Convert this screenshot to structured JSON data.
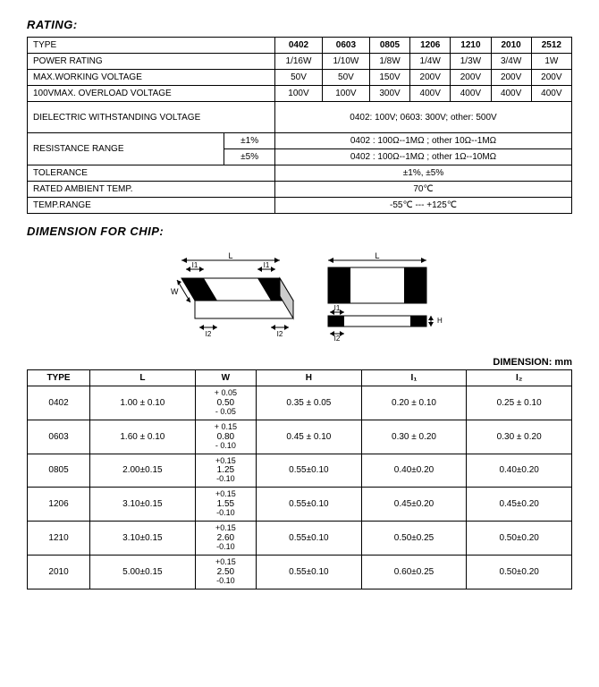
{
  "rating": {
    "title": "RATING:",
    "headers": [
      "TYPE",
      "0402",
      "0603",
      "0805",
      "1206",
      "1210",
      "2010",
      "2512"
    ],
    "rows": {
      "power": {
        "label": "POWER RATING",
        "vals": [
          "1/16W",
          "1/10W",
          "1/8W",
          "1/4W",
          "1/3W",
          "3/4W",
          "1W"
        ]
      },
      "maxwork": {
        "label": "MAX.WORKING VOLTAGE",
        "vals": [
          "50V",
          "50V",
          "150V",
          "200V",
          "200V",
          "200V",
          "200V"
        ]
      },
      "overload": {
        "label": "100VMAX. OVERLOAD VOLTAGE",
        "vals": [
          "100V",
          "100V",
          "300V",
          "400V",
          "400V",
          "400V",
          "400V"
        ]
      },
      "dielectric": {
        "label": "DIELECTRIC WITHSTANDING VOLTAGE",
        "val": "0402: 100V; 0603: 300V; other: 500V"
      },
      "resrange": {
        "label": "RESISTANCE RANGE",
        "tol1": "±1%",
        "val1": "0402 : 100Ω--1MΩ ; other 10Ω--1MΩ",
        "tol2": "±5%",
        "val2": "0402 : 100Ω--1MΩ ; other 1Ω--10MΩ"
      },
      "tolerance": {
        "label": "TOLERANCE",
        "val": "±1%, ±5%"
      },
      "ratedtemp": {
        "label": "RATED AMBIENT TEMP.",
        "val": "70℃"
      },
      "temprange": {
        "label": "TEMP.RANGE",
        "val": "-55℃ --- +125℃"
      }
    }
  },
  "dimension": {
    "title": "DIMENSION FOR CHIP:",
    "unit": "DIMENSION: mm",
    "headers": [
      "TYPE",
      "L",
      "W",
      "H",
      "I₁",
      "I₂"
    ],
    "rows": [
      {
        "t": "0402",
        "l": "1.00 ± 0.10",
        "w": "0.50",
        "wp": "+ 0.05",
        "wm": "- 0.05",
        "h": "0.35 ± 0.05",
        "i1": "0.20 ± 0.10",
        "i2": "0.25 ± 0.10"
      },
      {
        "t": "0603",
        "l": "1.60 ± 0.10",
        "w": "0.80",
        "wp": "+ 0.15",
        "wm": "- 0.10",
        "h": "0.45 ± 0.10",
        "i1": "0.30 ± 0.20",
        "i2": "0.30 ± 0.20"
      },
      {
        "t": "0805",
        "l": "2.00±0.15",
        "w": "1.25",
        "wp": "+0.15",
        "wm": "-0.10",
        "h": "0.55±0.10",
        "i1": "0.40±0.20",
        "i2": "0.40±0.20"
      },
      {
        "t": "1206",
        "l": "3.10±0.15",
        "w": "1.55",
        "wp": "+0.15",
        "wm": "-0.10",
        "h": "0.55±0.10",
        "i1": "0.45±0.20",
        "i2": "0.45±0.20"
      },
      {
        "t": "1210",
        "l": "3.10±0.15",
        "w": "2.60",
        "wp": "+0.15",
        "wm": "-0.10",
        "h": "0.55±0.10",
        "i1": "0.50±0.25",
        "i2": "0.50±0.20"
      },
      {
        "t": "2010",
        "l": "5.00±0.15",
        "w": "2.50",
        "wp": "+0.15",
        "wm": "-0.10",
        "h": "0.55±0.10",
        "i1": "0.60±0.25",
        "i2": "0.50±0.20"
      }
    ]
  },
  "diagram": {
    "labels": {
      "L": "L",
      "W": "W",
      "H": "H",
      "I1": "I1",
      "I2": "I2"
    },
    "colors": {
      "stroke": "#000000",
      "fill_dark": "#000000",
      "fill_light": "#ffffff",
      "fill_gray": "#cccccc"
    }
  }
}
